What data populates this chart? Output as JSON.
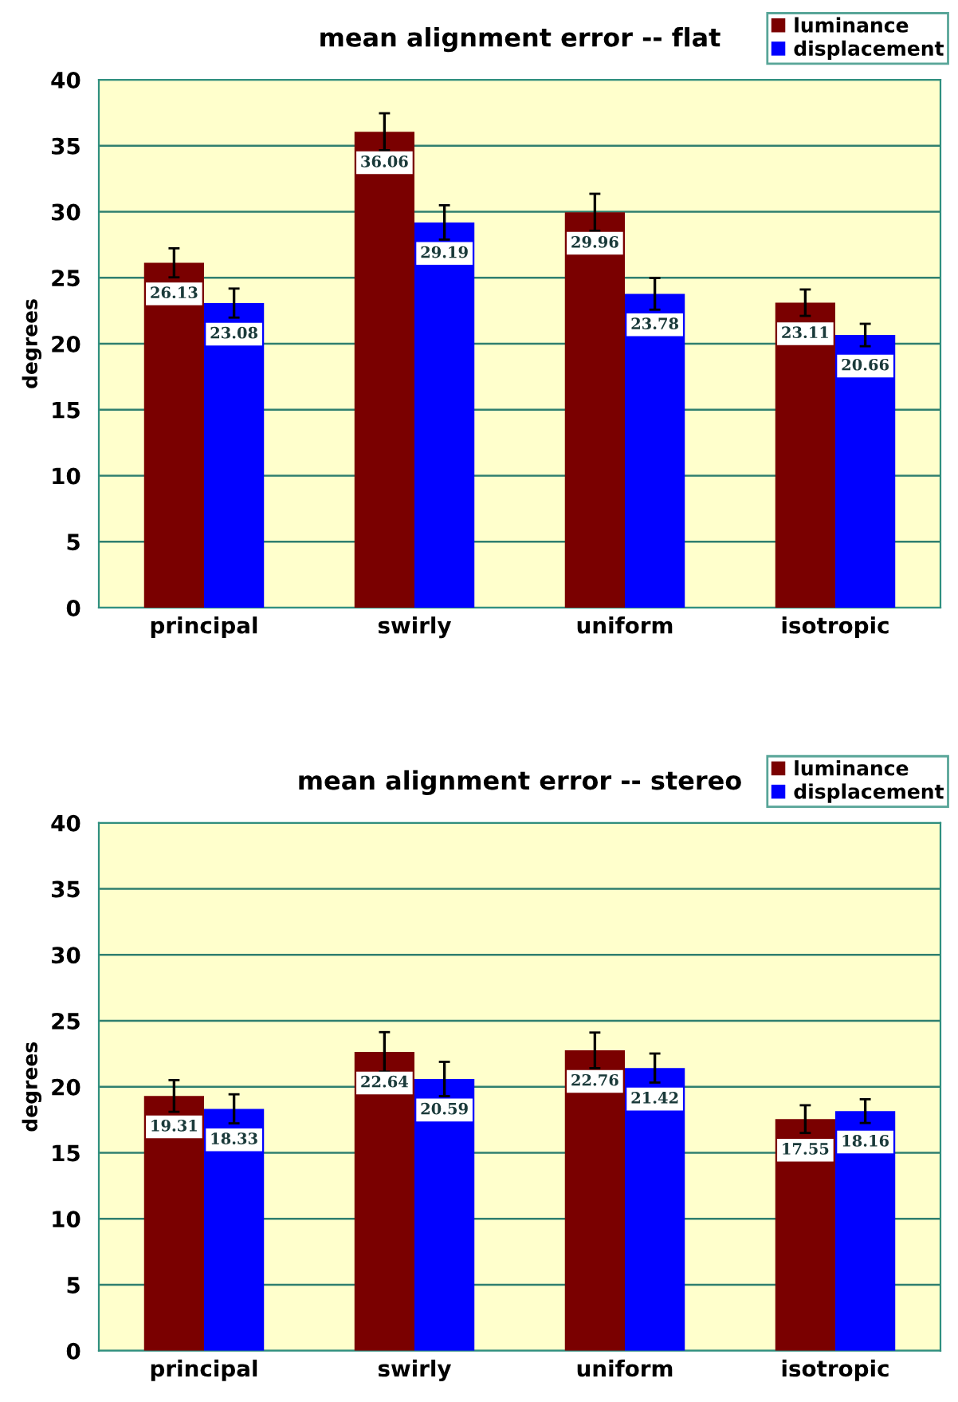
{
  "chart_data": [
    {
      "type": "bar",
      "title": "mean alignment error -- flat",
      "ylabel": "degrees",
      "categories": [
        "principal",
        "swirly",
        "uniform",
        "isotropic"
      ],
      "series": [
        {
          "name": "luminance",
          "color": "#7a0000",
          "values": [
            26.13,
            36.06,
            29.96,
            23.11
          ],
          "errors": [
            1.1,
            1.4,
            1.4,
            1.0
          ]
        },
        {
          "name": "displacement",
          "color": "#0000ff",
          "values": [
            23.08,
            29.19,
            23.78,
            20.66
          ],
          "errors": [
            1.1,
            1.3,
            1.2,
            0.85
          ]
        }
      ],
      "ylim": [
        0,
        40
      ],
      "yticks": [
        0,
        5,
        10,
        15,
        20,
        25,
        30,
        35,
        40
      ],
      "grid": "y",
      "legend": "top right",
      "data_labels": true
    },
    {
      "type": "bar",
      "title": "mean alignment error -- stereo",
      "ylabel": "degrees",
      "categories": [
        "principal",
        "swirly",
        "uniform",
        "isotropic"
      ],
      "series": [
        {
          "name": "luminance",
          "color": "#7a0000",
          "values": [
            19.31,
            22.64,
            22.76,
            17.55
          ],
          "errors": [
            1.2,
            1.5,
            1.35,
            1.05
          ]
        },
        {
          "name": "displacement",
          "color": "#0000ff",
          "values": [
            18.33,
            20.59,
            21.42,
            18.16
          ],
          "errors": [
            1.1,
            1.3,
            1.1,
            0.9
          ]
        }
      ],
      "ylim": [
        0,
        40
      ],
      "yticks": [
        0,
        5,
        10,
        15,
        20,
        25,
        30,
        35,
        40
      ],
      "grid": "y",
      "legend": "top right",
      "data_labels": true
    }
  ]
}
